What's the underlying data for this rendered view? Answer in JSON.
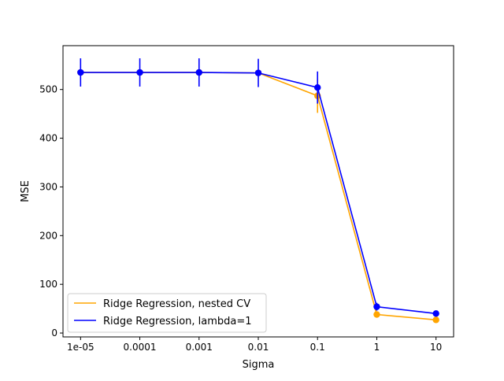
{
  "chart_data": {
    "type": "line",
    "title": "",
    "xlabel": "Sigma",
    "ylabel": "MSE",
    "x": [
      1e-05,
      0.0001,
      0.001,
      0.01,
      0.1,
      1,
      10
    ],
    "x_tick_labels": [
      "1e-05",
      "0.0001",
      "0.001",
      "0.01",
      "0.1",
      "1",
      "10"
    ],
    "x_scale": "log",
    "ylim": [
      -8,
      590
    ],
    "y_ticks": [
      0,
      100,
      200,
      300,
      400,
      500
    ],
    "grid": false,
    "legend_position": "lower-left",
    "series": [
      {
        "name": "Ridge Regression, nested CV",
        "color": "#FFA500",
        "values": [
          535,
          535,
          535,
          534,
          487,
          38,
          27
        ],
        "errors": [
          0,
          0,
          0,
          0,
          35,
          0,
          0
        ]
      },
      {
        "name": "Ridge Regression, lambda=1",
        "color": "#0000FF",
        "values": [
          535,
          535,
          535,
          534,
          504,
          54,
          40
        ],
        "errors": [
          29,
          29,
          29,
          29,
          33,
          8,
          6
        ]
      }
    ]
  }
}
